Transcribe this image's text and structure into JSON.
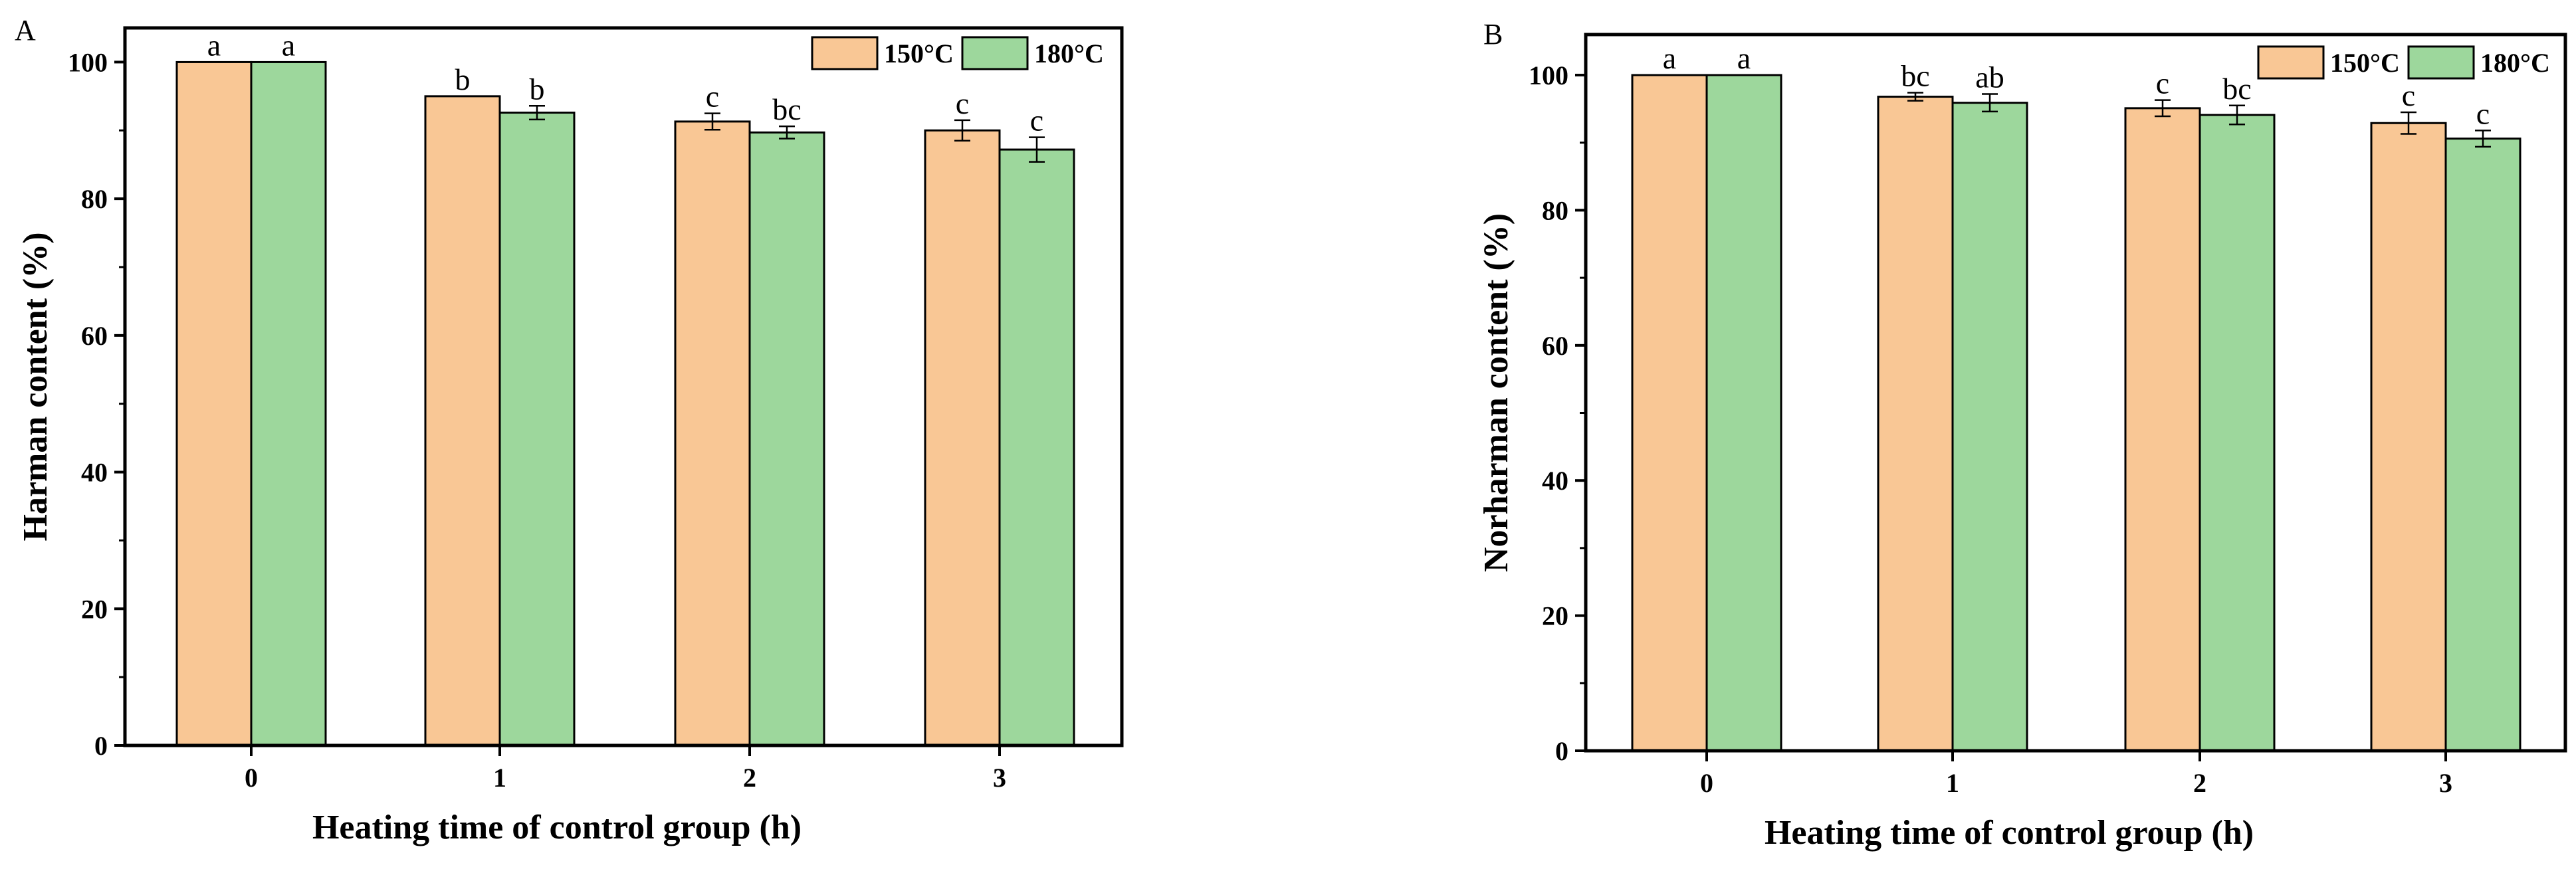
{
  "chart_data": [
    {
      "panel": "A",
      "type": "bar",
      "xlabel": "Heating time of control group (h)",
      "ylabel": "Harman content (%)",
      "ylim": [
        0,
        105
      ],
      "yticks": [
        0,
        20,
        40,
        60,
        80,
        100
      ],
      "categories": [
        "0",
        "1",
        "2",
        "3"
      ],
      "legend_position": "top-right",
      "series": [
        {
          "name": "150°C",
          "color": "#F9C795",
          "values": [
            100,
            95,
            91.3,
            90
          ],
          "errors": [
            0,
            0,
            1.2,
            1.5
          ],
          "labels": [
            "a",
            "b",
            "c",
            "c"
          ]
        },
        {
          "name": "180°C",
          "color": "#9DD79C",
          "values": [
            100,
            92.6,
            89.7,
            87.2
          ],
          "errors": [
            0,
            1.0,
            0.9,
            1.8
          ],
          "labels": [
            "a",
            "b",
            "bc",
            "c"
          ]
        }
      ]
    },
    {
      "panel": "B",
      "type": "bar",
      "xlabel": "Heating time of control group (h)",
      "ylabel": "Norharman content (%)",
      "ylim": [
        0,
        106
      ],
      "yticks": [
        0,
        20,
        40,
        60,
        80,
        100
      ],
      "categories": [
        "0",
        "1",
        "2",
        "3"
      ],
      "legend_position": "top-right",
      "series": [
        {
          "name": "150°C",
          "color": "#F9C795",
          "values": [
            100,
            96.8,
            95.1,
            92.9
          ],
          "errors": [
            0,
            0.6,
            1.2,
            1.6
          ],
          "labels": [
            "a",
            "bc",
            "c",
            "c"
          ]
        },
        {
          "name": "180°C",
          "color": "#9DD79C",
          "values": [
            100,
            95.9,
            94.1,
            90.6
          ],
          "errors": [
            0,
            1.3,
            1.4,
            1.2
          ],
          "labels": [
            "a",
            "ab",
            "bc",
            "c"
          ]
        }
      ]
    }
  ]
}
